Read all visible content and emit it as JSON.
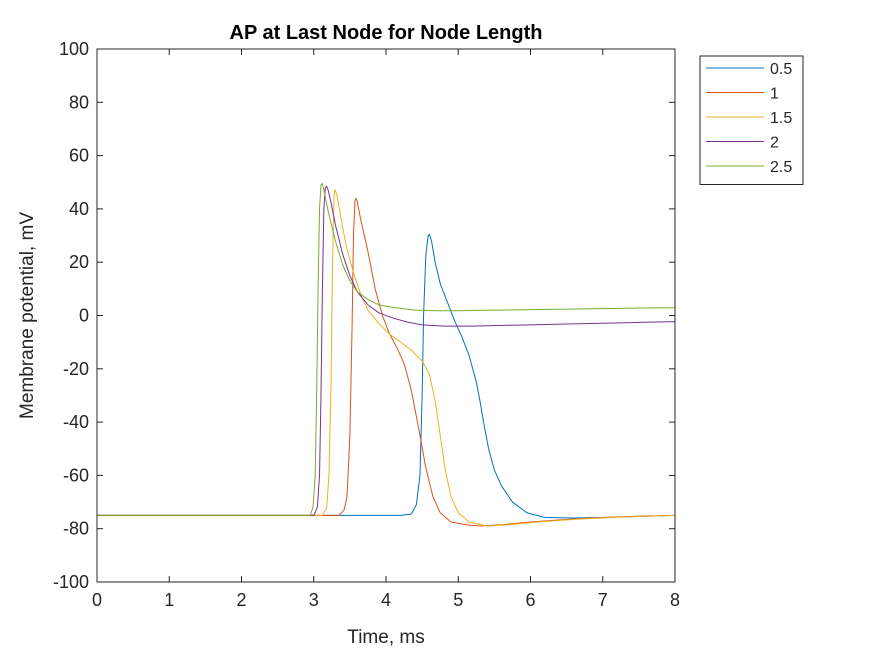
{
  "chart_data": {
    "type": "line",
    "title": "AP at Last Node for Node Length",
    "xlabel": "Time, ms",
    "ylabel": "Membrane potential, mV",
    "xlim": [
      0,
      8
    ],
    "ylim": [
      -100,
      100
    ],
    "xticks": [
      0,
      1,
      2,
      3,
      4,
      5,
      6,
      7,
      8
    ],
    "yticks": [
      -100,
      -80,
      -60,
      -40,
      -20,
      0,
      20,
      40,
      60,
      80,
      100
    ],
    "grid": false,
    "legend_position": "outside top-right",
    "series": [
      {
        "name": "0.5",
        "color": "#0072BD",
        "points": [
          [
            0,
            -75
          ],
          [
            4.2,
            -75
          ],
          [
            4.35,
            -74.5
          ],
          [
            4.42,
            -71
          ],
          [
            4.47,
            -60
          ],
          [
            4.5,
            -30
          ],
          [
            4.52,
            0
          ],
          [
            4.55,
            22
          ],
          [
            4.58,
            29.5
          ],
          [
            4.6,
            30.5
          ],
          [
            4.63,
            28
          ],
          [
            4.68,
            20
          ],
          [
            4.75,
            12
          ],
          [
            4.85,
            5
          ],
          [
            4.95,
            -2
          ],
          [
            5.05,
            -8
          ],
          [
            5.15,
            -15
          ],
          [
            5.25,
            -25
          ],
          [
            5.3,
            -32
          ],
          [
            5.35,
            -40
          ],
          [
            5.42,
            -50
          ],
          [
            5.5,
            -58
          ],
          [
            5.6,
            -64
          ],
          [
            5.75,
            -70
          ],
          [
            5.95,
            -74
          ],
          [
            6.2,
            -75.8
          ],
          [
            6.6,
            -76
          ],
          [
            7.0,
            -75.8
          ],
          [
            7.5,
            -75.4
          ],
          [
            8,
            -75
          ]
        ]
      },
      {
        "name": "1",
        "color": "#D95319",
        "points": [
          [
            0,
            -75
          ],
          [
            3.35,
            -75
          ],
          [
            3.42,
            -73
          ],
          [
            3.46,
            -68
          ],
          [
            3.5,
            -45
          ],
          [
            3.53,
            -5
          ],
          [
            3.55,
            30
          ],
          [
            3.57,
            43
          ],
          [
            3.58,
            44
          ],
          [
            3.6,
            43
          ],
          [
            3.65,
            36
          ],
          [
            3.75,
            24
          ],
          [
            3.85,
            10
          ],
          [
            3.95,
            0
          ],
          [
            4.05,
            -7
          ],
          [
            4.15,
            -12
          ],
          [
            4.25,
            -18
          ],
          [
            4.35,
            -28
          ],
          [
            4.45,
            -42
          ],
          [
            4.55,
            -57
          ],
          [
            4.65,
            -68
          ],
          [
            4.75,
            -74
          ],
          [
            4.9,
            -77.5
          ],
          [
            5.1,
            -78.5
          ],
          [
            5.3,
            -79
          ],
          [
            5.6,
            -78.5
          ],
          [
            6.0,
            -77.5
          ],
          [
            6.5,
            -76.5
          ],
          [
            7.0,
            -75.8
          ],
          [
            7.5,
            -75.3
          ],
          [
            8,
            -75
          ]
        ]
      },
      {
        "name": "1.5",
        "color": "#EDB120",
        "points": [
          [
            0,
            -75
          ],
          [
            3.12,
            -75
          ],
          [
            3.18,
            -72
          ],
          [
            3.21,
            -60
          ],
          [
            3.24,
            -25
          ],
          [
            3.26,
            20
          ],
          [
            3.28,
            44
          ],
          [
            3.29,
            47
          ],
          [
            3.3,
            47
          ],
          [
            3.33,
            44
          ],
          [
            3.38,
            36
          ],
          [
            3.45,
            26
          ],
          [
            3.55,
            16
          ],
          [
            3.65,
            8
          ],
          [
            3.75,
            2
          ],
          [
            3.9,
            -3
          ],
          [
            4.05,
            -7
          ],
          [
            4.2,
            -10
          ],
          [
            4.35,
            -13
          ],
          [
            4.5,
            -17
          ],
          [
            4.6,
            -22
          ],
          [
            4.68,
            -32
          ],
          [
            4.75,
            -45
          ],
          [
            4.82,
            -58
          ],
          [
            4.9,
            -68
          ],
          [
            5.0,
            -74
          ],
          [
            5.15,
            -77.5
          ],
          [
            5.4,
            -79
          ],
          [
            5.7,
            -78.5
          ],
          [
            6.1,
            -77.5
          ],
          [
            6.6,
            -76.5
          ],
          [
            7.2,
            -75.7
          ],
          [
            8,
            -75
          ]
        ]
      },
      {
        "name": "2",
        "color": "#7E2F8E",
        "points": [
          [
            0,
            -75
          ],
          [
            3.0,
            -75
          ],
          [
            3.05,
            -72
          ],
          [
            3.08,
            -60
          ],
          [
            3.1,
            -30
          ],
          [
            3.12,
            10
          ],
          [
            3.14,
            40
          ],
          [
            3.16,
            48
          ],
          [
            3.18,
            48.5
          ],
          [
            3.2,
            47
          ],
          [
            3.25,
            41
          ],
          [
            3.3,
            34
          ],
          [
            3.4,
            23
          ],
          [
            3.5,
            15
          ],
          [
            3.6,
            9
          ],
          [
            3.75,
            4
          ],
          [
            3.9,
            1
          ],
          [
            4.1,
            -1
          ],
          [
            4.3,
            -2.5
          ],
          [
            4.5,
            -3.5
          ],
          [
            4.8,
            -4
          ],
          [
            5.2,
            -4
          ],
          [
            5.6,
            -3.7
          ],
          [
            6.0,
            -3.5
          ],
          [
            6.5,
            -3.2
          ],
          [
            7.0,
            -2.9
          ],
          [
            7.5,
            -2.6
          ],
          [
            8,
            -2.3
          ]
        ]
      },
      {
        "name": "2.5",
        "color": "#77AC30",
        "points": [
          [
            0,
            -75
          ],
          [
            2.95,
            -75
          ],
          [
            2.99,
            -72
          ],
          [
            3.02,
            -60
          ],
          [
            3.04,
            -30
          ],
          [
            3.06,
            10
          ],
          [
            3.08,
            40
          ],
          [
            3.1,
            49
          ],
          [
            3.12,
            49.5
          ],
          [
            3.15,
            46
          ],
          [
            3.2,
            39
          ],
          [
            3.3,
            28
          ],
          [
            3.4,
            19
          ],
          [
            3.5,
            13
          ],
          [
            3.6,
            9
          ],
          [
            3.75,
            6
          ],
          [
            3.9,
            4
          ],
          [
            4.1,
            3
          ],
          [
            4.4,
            2
          ],
          [
            4.7,
            1.8
          ],
          [
            5.0,
            1.8
          ],
          [
            5.5,
            2
          ],
          [
            6.0,
            2.2
          ],
          [
            6.5,
            2.4
          ],
          [
            7.0,
            2.6
          ],
          [
            7.5,
            2.8
          ],
          [
            8,
            2.9
          ]
        ]
      }
    ]
  }
}
